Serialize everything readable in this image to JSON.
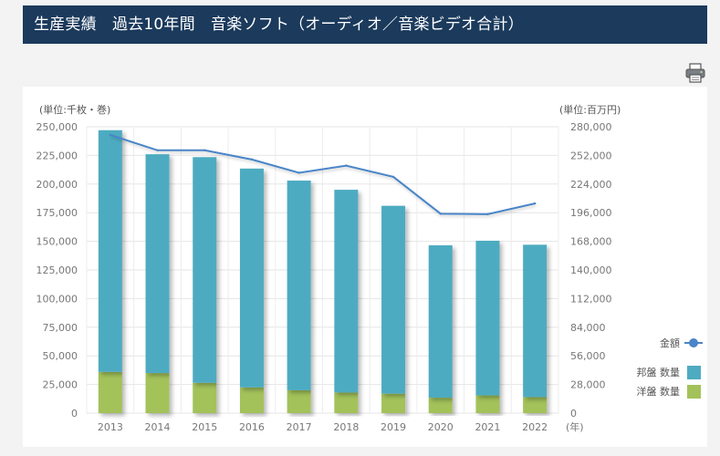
{
  "header": {
    "title": "生産実績　過去10年間　音楽ソフト（オーディオ／音楽ビデオ合計）"
  },
  "toolbar": {
    "print_icon": "printer-icon"
  },
  "chart_data": {
    "type": "bar",
    "categories": [
      "2013",
      "2014",
      "2015",
      "2016",
      "2017",
      "2018",
      "2019",
      "2020",
      "2021",
      "2022"
    ],
    "series": [
      {
        "name": "邦盤 数量",
        "type": "bar",
        "stack": "quantity",
        "axis": "left",
        "color": "#4eabc1",
        "values": [
          211000,
          191000,
          197000,
          191000,
          183000,
          177000,
          164000,
          133000,
          135000,
          133000
        ]
      },
      {
        "name": "洋盤 数量",
        "type": "bar",
        "stack": "quantity",
        "axis": "left",
        "color": "#a3c25a",
        "values": [
          36000,
          35000,
          26500,
          22500,
          20000,
          18000,
          17000,
          13500,
          15500,
          14000
        ]
      },
      {
        "name": "金額",
        "type": "line",
        "axis": "right",
        "color": "#4a85c8",
        "values": [
          272000,
          257000,
          257000,
          248000,
          235000,
          242000,
          231000,
          195000,
          194500,
          205000
        ]
      }
    ],
    "left_axis": {
      "unit_label": "(単位:千枚・巻)",
      "min": 0,
      "max": 250000,
      "ticks": [
        "0",
        "25,000",
        "50,000",
        "75,000",
        "100,000",
        "125,000",
        "150,000",
        "175,000",
        "200,000",
        "225,000",
        "250,000"
      ]
    },
    "right_axis": {
      "unit_label": "(単位:百万円)",
      "min": 0,
      "max": 280000,
      "ticks": [
        "0",
        "28,000",
        "56,000",
        "84,000",
        "112,000",
        "140,000",
        "168,000",
        "196,000",
        "224,000",
        "252,000",
        "280,000"
      ]
    },
    "x_unit_label": "(年)",
    "legend": {
      "position": "right-bottom",
      "items": [
        {
          "label": "金額",
          "kind": "line",
          "color": "#4a85c8"
        },
        {
          "label": "邦盤 数量",
          "kind": "box",
          "color": "#4eabc1"
        },
        {
          "label": "洋盤 数量",
          "kind": "box",
          "color": "#a3c25a"
        }
      ]
    },
    "grid": true
  }
}
